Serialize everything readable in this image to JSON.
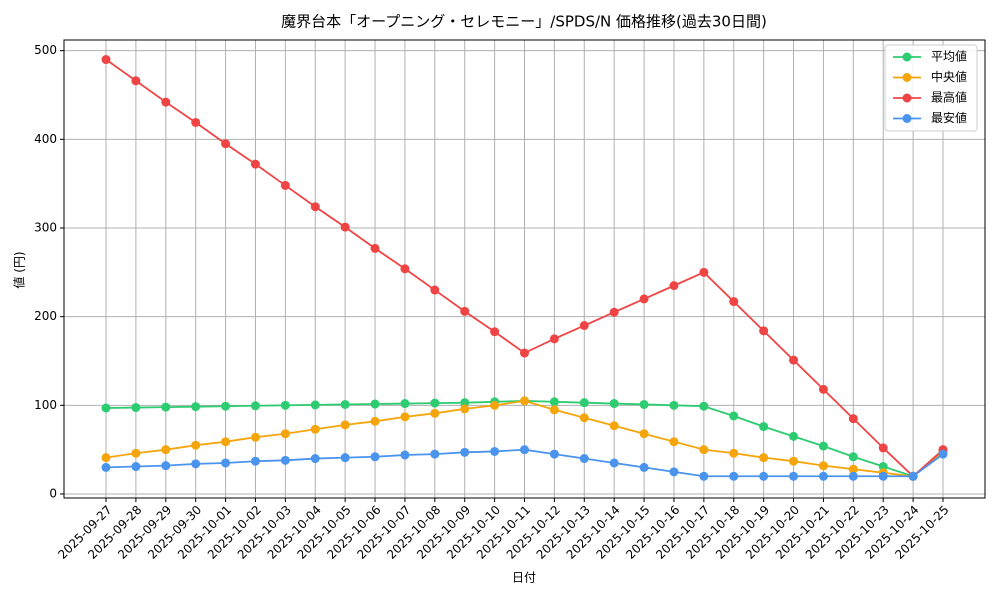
{
  "chart_data": {
    "type": "line",
    "title": "魔界台本「オープニング・セレモニー」/SPDS/N 価格推移(過去30日間)",
    "x_label": "日付",
    "y_label": "値 (円)",
    "categories": [
      "2025-09-27",
      "2025-09-28",
      "2025-09-29",
      "2025-09-30",
      "2025-10-01",
      "2025-10-02",
      "2025-10-03",
      "2025-10-04",
      "2025-10-05",
      "2025-10-06",
      "2025-10-07",
      "2025-10-08",
      "2025-10-09",
      "2025-10-10",
      "2025-10-11",
      "2025-10-12",
      "2025-10-13",
      "2025-10-14",
      "2025-10-15",
      "2025-10-16",
      "2025-10-17",
      "2025-10-18",
      "2025-10-19",
      "2025-10-20",
      "2025-10-21",
      "2025-10-22",
      "2025-10-23",
      "2025-10-24",
      "2025-10-25"
    ],
    "series": [
      {
        "name": "平均値",
        "color": "#2ecc71",
        "values": [
          97,
          97.5,
          98,
          98.5,
          99,
          99.5,
          100,
          100.5,
          101,
          101.5,
          102,
          102.5,
          103,
          104,
          105,
          104,
          103,
          102,
          101,
          100,
          99,
          88,
          76,
          65,
          54,
          42,
          31,
          20,
          47
        ]
      },
      {
        "name": "中央値",
        "color": "#f5a50a",
        "values": [
          41,
          46,
          50,
          55,
          59,
          64,
          68,
          73,
          78,
          82,
          87,
          91,
          96,
          100,
          105,
          95,
          86,
          77,
          68,
          59,
          50,
          46,
          41,
          37,
          32,
          28,
          24,
          20,
          48
        ]
      },
      {
        "name": "最高値",
        "color": "#ef4444",
        "values": [
          490,
          466,
          442,
          419,
          395,
          372,
          348,
          324,
          301,
          277,
          254,
          230,
          206,
          183,
          159,
          175,
          190,
          205,
          220,
          235,
          250,
          217,
          184,
          151,
          118,
          85,
          52,
          20,
          50
        ]
      },
      {
        "name": "最安値",
        "color": "#4a94ee",
        "values": [
          30,
          31,
          32,
          34,
          35,
          37,
          38,
          40,
          41,
          42,
          44,
          45,
          47,
          48,
          50,
          45,
          40,
          35,
          30,
          25,
          20,
          20,
          20,
          20,
          20,
          20,
          20,
          20,
          45
        ]
      }
    ],
    "ylim": [
      -4.5,
      512
    ],
    "yticks": [
      0,
      100,
      200,
      300,
      400,
      500
    ],
    "grid": true,
    "legend": "upper right"
  }
}
